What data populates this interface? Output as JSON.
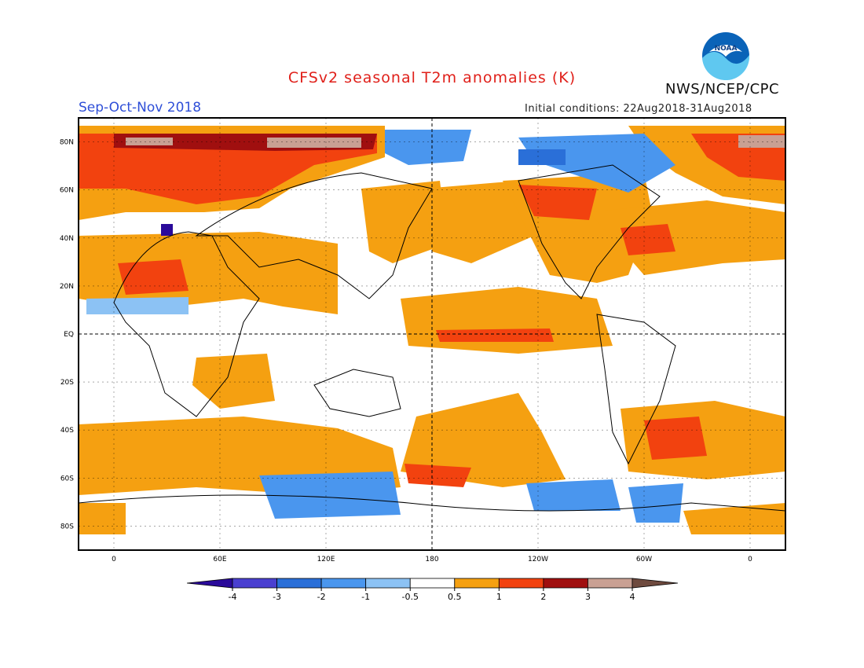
{
  "header": {
    "title": "CFSv2 seasonal T2m anomalies (K)",
    "season": "Sep-Oct-Nov 2018",
    "initial_conditions": "Initial conditions: 22Aug2018-31Aug2018",
    "agency": "NWS/NCEP/CPC",
    "logo_text": "NOAA"
  },
  "map": {
    "lat_labels": [
      "80N",
      "60N",
      "40N",
      "20N",
      "EQ",
      "20S",
      "40S",
      "60S",
      "80S"
    ],
    "lat_values": [
      80,
      60,
      40,
      20,
      0,
      -20,
      -40,
      -60,
      -80
    ],
    "lon_labels": [
      "0",
      "60E",
      "120E",
      "180",
      "120W",
      "60W",
      "0"
    ],
    "lon_values": [
      0,
      60,
      120,
      180,
      240,
      300,
      360
    ],
    "lon_range": [
      -20,
      380
    ],
    "lat_range": [
      -90,
      90
    ]
  },
  "colorbar": {
    "tick_labels": [
      "-4",
      "-3",
      "-2",
      "-1",
      "-0.5",
      "0.5",
      "1",
      "2",
      "3",
      "4"
    ],
    "colors": [
      "#2a0a9a",
      "#4a3fd0",
      "#2a6fd8",
      "#4a96ee",
      "#8cc2f4",
      "#ffffff",
      "#f5a011",
      "#f2420f",
      "#a00f0f",
      "#c9a093",
      "#6e4a3e"
    ]
  },
  "colors": {
    "title": "#e0201a",
    "season": "#2f4fd8",
    "ocean_blue": "#0a63b8"
  }
}
